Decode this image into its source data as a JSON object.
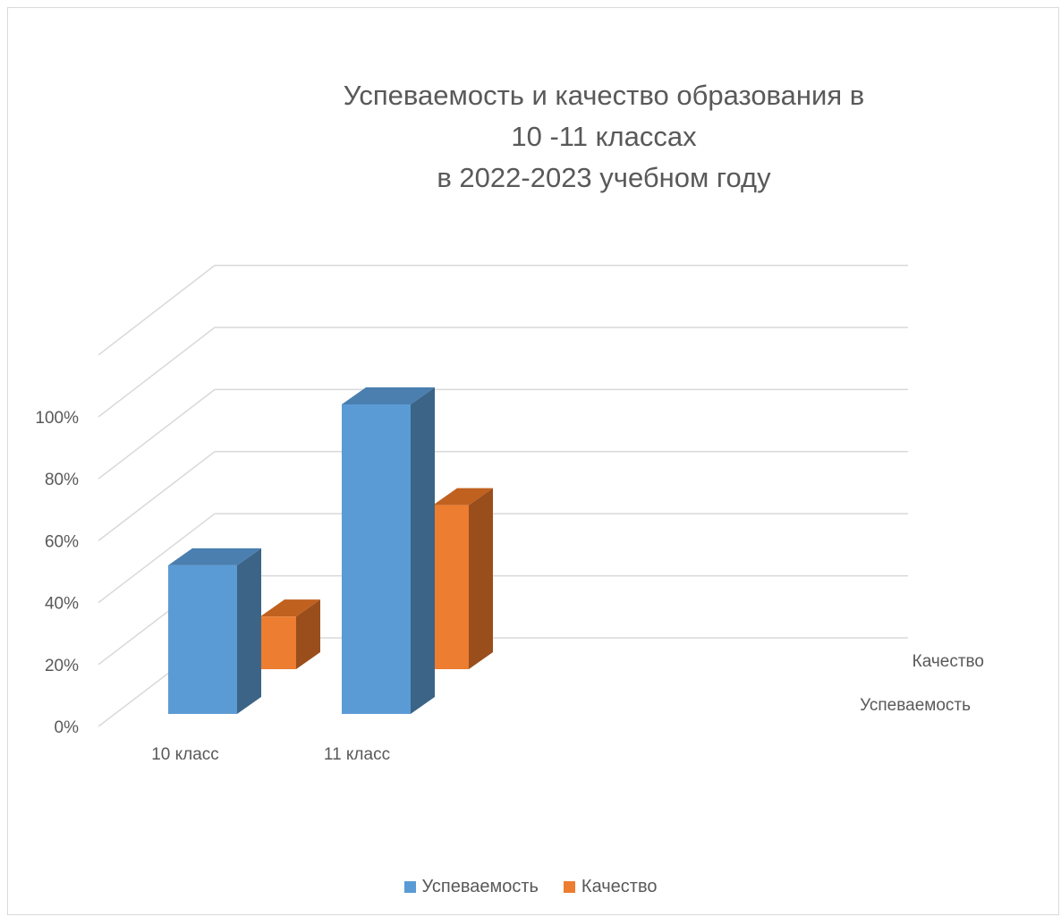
{
  "chart_data": {
    "type": "bar",
    "subtype": "3d-column",
    "title_lines": [
      "Успеваемость и качество образования в",
      "10 -11 классах",
      "в 2022-2023 учебном году"
    ],
    "categories": [
      "10 класс",
      "11 класс"
    ],
    "series": [
      {
        "name": "Успеваемость",
        "values": [
          48,
          100
        ],
        "color": "#5b9bd5",
        "side_color": "#3b6486",
        "top_color": "#4a7fb0"
      },
      {
        "name": "Качество",
        "values": [
          17,
          53
        ],
        "color": "#ed7d31",
        "side_color": "#9a4e1c",
        "top_color": "#c0611f"
      }
    ],
    "ylim": [
      0,
      100
    ],
    "y_ticks": [
      "0%",
      "20%",
      "40%",
      "60%",
      "80%",
      "100%"
    ],
    "depth_labels": [
      "Качество",
      "Успеваемость"
    ],
    "grid": true,
    "legend": "bottom"
  }
}
